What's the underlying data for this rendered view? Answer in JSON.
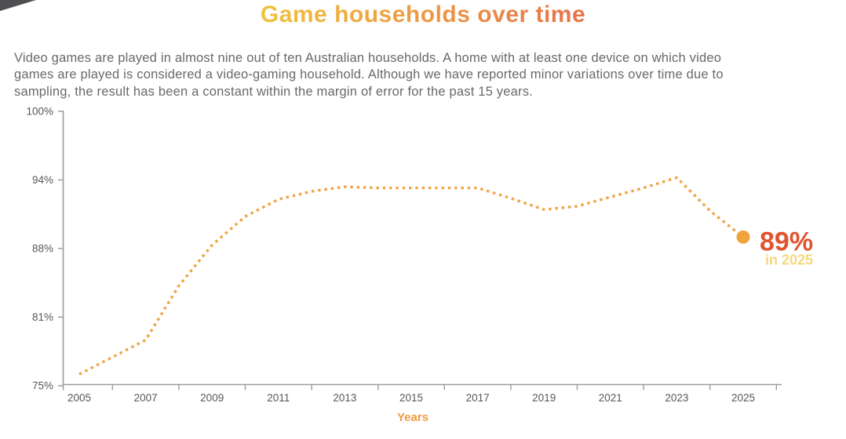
{
  "page": {
    "title": "Game households over time",
    "description_lines": [
      "Video games are played in almost nine out of ten Australian households. A home with at least one device on which video",
      "games are played is considered a video-gaming household. Although we have reported minor variations over time due to",
      "sampling, the result has been a constant within the margin of error for the past 15 years."
    ]
  },
  "colors": {
    "title_gradient_start": "#F0C23E",
    "title_gradient_end": "#E8714A",
    "body_text": "#68696C",
    "axis": "#9B9B9B",
    "tick_label": "#55565A",
    "line": "#F0A342",
    "end_dot": "#F1A33C",
    "annotation_value": "#E05430",
    "annotation_sub": "#F6D77F",
    "xlabel": "#F0993F",
    "corner": "#4F4F51"
  },
  "chart_data": {
    "type": "line",
    "title": "Game households over time",
    "xlabel": "Years",
    "ylabel": "",
    "x": [
      2005,
      2006,
      2007,
      2008,
      2009,
      2010,
      2011,
      2012,
      2013,
      2014,
      2015,
      2016,
      2017,
      2018,
      2019,
      2020,
      2021,
      2022,
      2023,
      2024,
      2025
    ],
    "values": [
      76,
      77.5,
      79,
      84.2,
      88.3,
      90.8,
      92.3,
      93,
      93.4,
      93.3,
      93.3,
      93.3,
      93.3,
      92.4,
      91.4,
      91.7,
      92.5,
      93.3,
      94.2,
      91.3,
      89
    ],
    "x_tick_labels": [
      "2005",
      "2007",
      "2009",
      "2011",
      "2013",
      "2015",
      "2017",
      "2019",
      "2021",
      "2023",
      "2025"
    ],
    "y_axis": {
      "tick_labels": [
        "100%",
        "94%",
        "88%",
        "81%",
        "75%"
      ],
      "tick_values": [
        100,
        94,
        88,
        81,
        75
      ]
    },
    "line_style": "dotted",
    "grid": false,
    "legend": false,
    "annotation": {
      "value_label": "89%",
      "sub_label": "in 2025"
    }
  }
}
